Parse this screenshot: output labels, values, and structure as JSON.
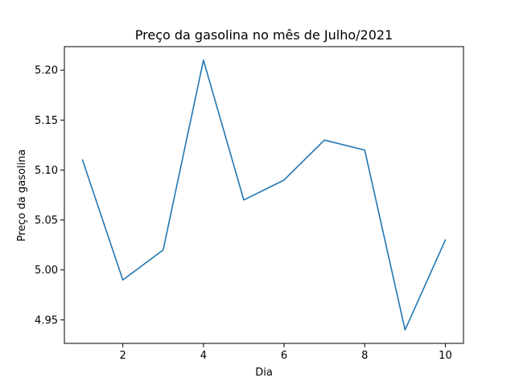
{
  "chart_data": {
    "type": "line",
    "title": "Preço da gasolina no mês de Julho/2021",
    "xlabel": "Dia",
    "ylabel": "Preço da gasolina",
    "x": [
      1,
      2,
      3,
      4,
      5,
      6,
      7,
      8,
      9,
      10
    ],
    "series": [
      {
        "values": [
          5.11,
          4.99,
          5.02,
          5.21,
          5.07,
          5.09,
          5.13,
          5.12,
          4.94,
          5.03
        ]
      }
    ],
    "xticks": [
      2,
      4,
      6,
      8,
      10
    ],
    "yticks": [
      "4.95",
      "5.00",
      "5.05",
      "5.10",
      "5.15",
      "5.20"
    ],
    "xlim": [
      0.55,
      10.45
    ],
    "ylim": [
      4.9265,
      5.2235
    ],
    "grid": false,
    "line_color": "#1f77b4"
  }
}
